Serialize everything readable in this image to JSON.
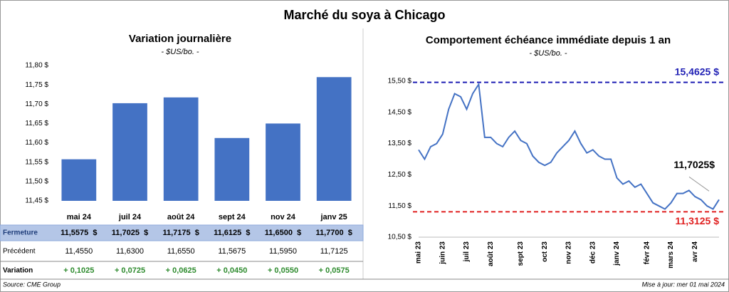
{
  "title": "Marché du soya à Chicago",
  "chart_data": [
    {
      "type": "bar",
      "title": "Variation journalière",
      "subtitle": "- $US/bo. -",
      "categories": [
        "mai 24",
        "juil 24",
        "août 24",
        "sept 24",
        "nov 24",
        "janv 25"
      ],
      "values": [
        11.5575,
        11.7025,
        11.7175,
        11.6125,
        11.65,
        11.77
      ],
      "color": "#4472c4",
      "ylim": [
        11.45,
        11.8
      ],
      "yticks": [
        {
          "value": 11.45,
          "label": "11,45 $"
        },
        {
          "value": 11.5,
          "label": "11,50 $"
        },
        {
          "value": 11.55,
          "label": "11,55 $"
        },
        {
          "value": 11.6,
          "label": "11,60 $"
        },
        {
          "value": 11.65,
          "label": "11,65 $"
        },
        {
          "value": 11.7,
          "label": "11,70 $"
        },
        {
          "value": 11.75,
          "label": "11,75 $"
        },
        {
          "value": 11.8,
          "label": "11,80 $"
        }
      ]
    },
    {
      "type": "line",
      "title": "Comportement échéance immédiate depuis 1 an",
      "subtitle": "- $US/bo. -",
      "categories": [
        "mai 23",
        null,
        null,
        null,
        "juin 23",
        null,
        null,
        null,
        "juil 23",
        null,
        null,
        null,
        "août 23",
        null,
        null,
        null,
        null,
        "sept 23",
        null,
        null,
        null,
        "oct 23",
        null,
        null,
        null,
        "nov 23",
        null,
        null,
        null,
        "déc 23",
        null,
        null,
        null,
        "janv 24",
        null,
        null,
        null,
        null,
        "févr 24",
        null,
        null,
        null,
        "mars 24",
        null,
        null,
        null,
        "avr 24",
        null,
        null,
        null,
        null
      ],
      "values": [
        13.3,
        13.0,
        13.4,
        13.5,
        13.8,
        14.6,
        15.1,
        15.0,
        14.6,
        15.1,
        15.4,
        13.7,
        13.7,
        13.5,
        13.4,
        13.7,
        13.9,
        13.6,
        13.5,
        13.1,
        12.9,
        12.8,
        12.9,
        13.2,
        13.4,
        13.6,
        13.9,
        13.5,
        13.2,
        13.3,
        13.1,
        13.0,
        13.0,
        12.4,
        12.2,
        12.3,
        12.1,
        12.2,
        11.9,
        11.6,
        11.5,
        11.4,
        11.6,
        11.9,
        11.9,
        12.0,
        11.8,
        11.7,
        11.5,
        11.4,
        11.7025
      ],
      "color": "#4472c4",
      "ylim": [
        10.5,
        15.5
      ],
      "yticks": [
        {
          "value": 10.5,
          "label": "10,50 $"
        },
        {
          "value": 11.5,
          "label": "11,50 $"
        },
        {
          "value": 12.5,
          "label": "12,50 $"
        },
        {
          "value": 13.5,
          "label": "13,50 $"
        },
        {
          "value": 14.5,
          "label": "14,50 $"
        },
        {
          "value": 15.5,
          "label": "15,50 $"
        }
      ],
      "reference_lines": [
        {
          "value": 15.4625,
          "label": "15,4625 $",
          "color": "#1f1fb4"
        },
        {
          "value": 11.3125,
          "label": "11,3125 $",
          "color": "#e02020"
        }
      ],
      "annotation": "11,7025$"
    }
  ],
  "table": {
    "rows": [
      [
        "Fermeture",
        "11,5575  $",
        "11,7025  $",
        "11,7175  $",
        "11,6125  $",
        "11,6500  $",
        "11,7700  $"
      ],
      [
        "Précédent",
        "11,4550",
        "11,6300",
        "11,6550",
        "11,5675",
        "11,5950",
        "11,7125"
      ],
      [
        "Variation",
        "+ 0,1025",
        "+ 0,0725",
        "+ 0,0625",
        "+ 0,0450",
        "+ 0,0550",
        "+ 0,0575"
      ]
    ]
  },
  "footer": {
    "source": "Source: CME Group",
    "updated": "Mise à jour: mer 01 mai 2024"
  }
}
